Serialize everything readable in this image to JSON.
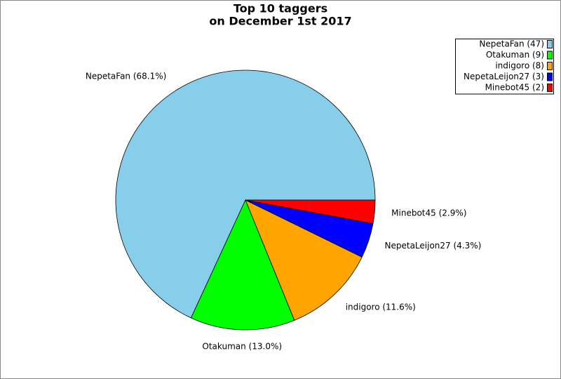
{
  "chart_data": {
    "type": "pie",
    "title": [
      "Top 10 taggers",
      "on December 1st 2017"
    ],
    "categories": [
      "NepetaFan (47)",
      "Otakuman (9)",
      "indigoro (8)",
      "NepetaLeijon27 (3)",
      "Minebot45 (2)"
    ],
    "values": [
      47,
      9,
      8,
      3,
      2
    ],
    "value_labels": [
      "NepetaFan (68.1%)",
      "Otakuman (13.0%)",
      "indigoro (11.6%)",
      "NepetaLeijon27 (4.3%)",
      "Minebot45 (2.9%)"
    ],
    "colors": [
      "#87ceeb",
      "#00ff00",
      "#ffa500",
      "#0000ff",
      "#ff0000"
    ],
    "legend": "upper right"
  }
}
